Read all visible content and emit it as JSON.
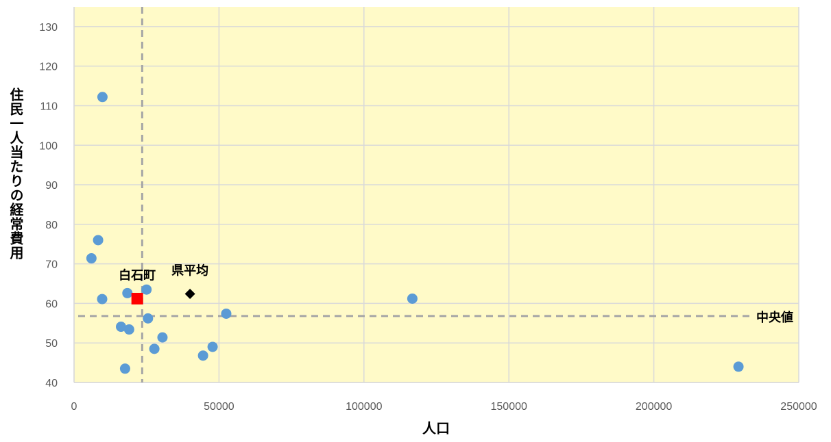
{
  "chart_data": {
    "type": "scatter",
    "xlabel": "人口",
    "ylabel": "住民一人当たりの経常費用",
    "xlim": [
      0,
      250000
    ],
    "ylim": [
      40,
      135
    ],
    "x_ticks": [
      0,
      50000,
      100000,
      150000,
      200000,
      250000
    ],
    "y_ticks": [
      40,
      50,
      60,
      70,
      80,
      90,
      100,
      110,
      120,
      130
    ],
    "grid": true,
    "plot_background": "#FFFAC8",
    "series": [
      {
        "marker": "circle",
        "color": "#5B9BD5",
        "points": [
          {
            "x": 9800,
            "y": 112.2
          },
          {
            "x": 8300,
            "y": 76.0
          },
          {
            "x": 6000,
            "y": 71.4
          },
          {
            "x": 9700,
            "y": 61.1
          },
          {
            "x": 18400,
            "y": 62.6
          },
          {
            "x": 25000,
            "y": 63.5
          },
          {
            "x": 16200,
            "y": 54.1
          },
          {
            "x": 19000,
            "y": 53.4
          },
          {
            "x": 25500,
            "y": 56.2
          },
          {
            "x": 30500,
            "y": 51.4
          },
          {
            "x": 27700,
            "y": 48.5
          },
          {
            "x": 44500,
            "y": 46.8
          },
          {
            "x": 47800,
            "y": 49.0
          },
          {
            "x": 52500,
            "y": 57.4
          },
          {
            "x": 17600,
            "y": 43.5
          },
          {
            "x": 116700,
            "y": 61.2
          },
          {
            "x": 229200,
            "y": 44.0
          }
        ]
      },
      {
        "label": "白石町",
        "marker": "square",
        "color": "#FF0000",
        "points": [
          {
            "x": 21800,
            "y": 61.2
          }
        ]
      },
      {
        "label": "県平均",
        "marker": "diamond",
        "color": "#000000",
        "points": [
          {
            "x": 40000,
            "y": 62.4
          }
        ]
      }
    ],
    "median_lines": {
      "label": "中央値",
      "x": 23500,
      "y": 56.8,
      "color": "#A6A6A6"
    }
  }
}
